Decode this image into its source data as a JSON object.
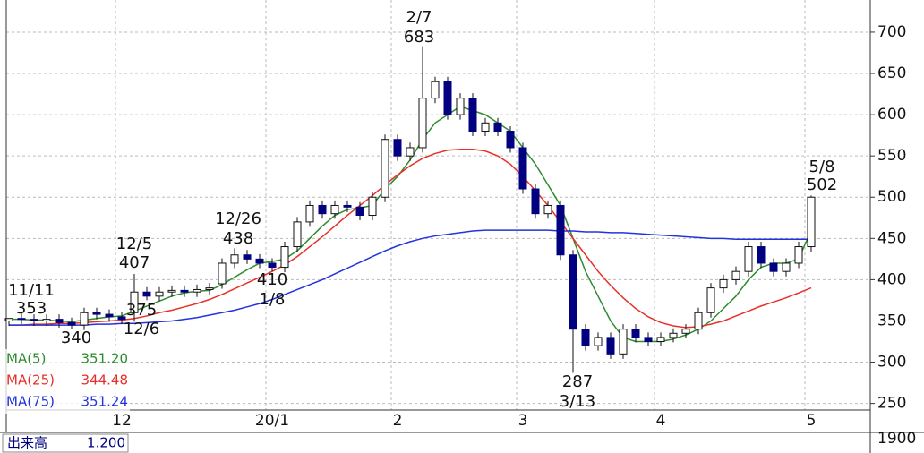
{
  "chart_data": {
    "type": "candlestick",
    "categories": [
      null,
      null,
      null,
      null,
      null,
      null,
      null,
      null,
      null,
      "12",
      null,
      null,
      null,
      null,
      null,
      null,
      null,
      null,
      null,
      null,
      null,
      "20/1",
      null,
      null,
      null,
      null,
      null,
      null,
      null,
      null,
      null,
      "2",
      null,
      null,
      null,
      null,
      null,
      null,
      null,
      null,
      null,
      "3",
      null,
      null,
      null,
      null,
      null,
      null,
      null,
      null,
      null,
      null,
      "4",
      null,
      null,
      null,
      null,
      null,
      null,
      null,
      null,
      null,
      null,
      null,
      "5"
    ],
    "open": [
      350,
      353,
      352,
      350,
      352,
      348,
      345,
      360,
      358,
      355,
      360,
      385,
      380,
      385,
      387,
      385,
      388,
      395,
      420,
      430,
      425,
      420,
      415,
      440,
      470,
      490,
      480,
      490,
      488,
      478,
      500,
      570,
      550,
      560,
      620,
      640,
      600,
      620,
      580,
      590,
      580,
      560,
      510,
      480,
      490,
      430,
      340,
      320,
      330,
      310,
      340,
      330,
      325,
      330,
      335,
      340,
      360,
      390,
      400,
      410,
      440,
      420,
      410,
      420,
      440
    ],
    "high": [
      353,
      359,
      358,
      358,
      358,
      354,
      366,
      366,
      364,
      361,
      407,
      391,
      391,
      393,
      393,
      394,
      396,
      426,
      438,
      436,
      431,
      426,
      446,
      476,
      496,
      496,
      496,
      496,
      494,
      506,
      576,
      576,
      566,
      683,
      646,
      646,
      626,
      626,
      596,
      596,
      586,
      566,
      516,
      496,
      496,
      436,
      346,
      336,
      336,
      346,
      346,
      336,
      336,
      341,
      346,
      366,
      396,
      406,
      416,
      446,
      446,
      426,
      426,
      446,
      502
    ],
    "low": [
      344,
      346,
      344,
      344,
      342,
      340,
      339,
      352,
      349,
      346,
      349,
      375,
      374,
      379,
      379,
      379,
      382,
      389,
      414,
      419,
      414,
      410,
      409,
      434,
      464,
      474,
      474,
      482,
      472,
      472,
      494,
      544,
      544,
      554,
      614,
      594,
      594,
      574,
      574,
      574,
      554,
      504,
      474,
      474,
      424,
      287,
      314,
      314,
      304,
      304,
      324,
      319,
      319,
      324,
      329,
      334,
      354,
      384,
      394,
      404,
      414,
      404,
      404,
      414,
      434
    ],
    "close": [
      353,
      352,
      350,
      352,
      348,
      345,
      360,
      358,
      355,
      352,
      385,
      380,
      385,
      387,
      385,
      388,
      390,
      420,
      430,
      425,
      420,
      415,
      440,
      470,
      490,
      480,
      490,
      488,
      478,
      500,
      570,
      550,
      560,
      620,
      640,
      600,
      620,
      580,
      590,
      580,
      560,
      510,
      480,
      490,
      430,
      340,
      320,
      330,
      310,
      340,
      330,
      325,
      330,
      335,
      340,
      360,
      390,
      400,
      410,
      440,
      420,
      410,
      420,
      440,
      500
    ],
    "up_color": "#ffffff",
    "down_color": "#000080",
    "series": [
      {
        "name": "MA(5)",
        "color": "#2e8b2e",
        "legend_label": "351.20",
        "values": [
          352,
          352,
          351,
          351,
          350,
          349,
          351,
          353,
          355,
          356,
          362,
          368,
          374,
          380,
          384,
          386,
          387,
          394,
          403,
          412,
          420,
          422,
          425,
          435,
          450,
          465,
          478,
          485,
          487,
          490,
          510,
          525,
          545,
          570,
          590,
          600,
          610,
          605,
          600,
          590,
          580,
          560,
          540,
          515,
          490,
          450,
          410,
          380,
          350,
          330,
          325,
          325,
          325,
          328,
          333,
          340,
          350,
          365,
          380,
          400,
          415,
          420,
          420,
          425,
          460
        ]
      },
      {
        "name": "MA(25)",
        "color": "#e8302a",
        "legend_label": "344.48",
        "values": [
          345,
          345,
          346,
          346,
          347,
          347,
          348,
          349,
          350,
          351,
          353,
          356,
          360,
          363,
          367,
          371,
          376,
          382,
          389,
          396,
          403,
          410,
          418,
          428,
          440,
          452,
          465,
          478,
          490,
          502,
          515,
          527,
          538,
          547,
          553,
          557,
          558,
          558,
          556,
          550,
          540,
          525,
          508,
          490,
          470,
          450,
          430,
          410,
          393,
          378,
          365,
          355,
          348,
          344,
          342,
          343,
          346,
          350,
          356,
          362,
          368,
          373,
          378,
          384,
          390
        ]
      },
      {
        "name": "MA(75)",
        "color": "#2233dd",
        "legend_label": "351.24",
        "values": [
          345,
          345,
          345,
          345,
          345,
          345,
          345,
          346,
          346,
          347,
          347,
          348,
          349,
          350,
          352,
          354,
          357,
          360,
          363,
          367,
          371,
          376,
          382,
          388,
          394,
          400,
          407,
          414,
          421,
          428,
          435,
          441,
          446,
          450,
          453,
          455,
          457,
          459,
          460,
          460,
          460,
          460,
          460,
          460,
          459,
          459,
          458,
          458,
          457,
          457,
          456,
          455,
          454,
          453,
          452,
          451,
          450,
          450,
          449,
          449,
          449,
          449,
          449,
          449,
          449
        ]
      }
    ],
    "annotations": [
      {
        "date": "11/11",
        "value": 353
      },
      {
        "value": 340
      },
      {
        "date": "12/5",
        "value": 407
      },
      {
        "date": "12/6",
        "value": 375
      },
      {
        "date": "12/26",
        "value": 438
      },
      {
        "date": "1/8",
        "value": 410
      },
      {
        "date": "2/7",
        "value": 683
      },
      {
        "date": "3/13",
        "value": 287
      },
      {
        "date": "5/8",
        "value": 502
      }
    ],
    "ylim": [
      242,
      739
    ],
    "yticks": [
      250,
      300,
      350,
      400,
      450,
      500,
      550,
      600,
      650,
      700
    ],
    "grid": true,
    "volume_panel": {
      "label": "出来高",
      "value_label": "1.200",
      "axis_label": "1900"
    }
  }
}
